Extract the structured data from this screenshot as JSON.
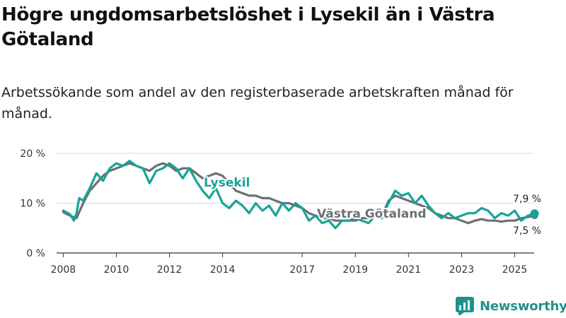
{
  "title": "Högre ungdomsarbetslöshet i Lysekil än i Västra Götaland",
  "subtitle": "Arbetssökande som andel av den registerbaserade arbetskraften månad för månad.",
  "logo": {
    "text": "Newsworthy"
  },
  "colors": {
    "lysekil": "#17a398",
    "vastra": "#6e6e75",
    "grid": "#dcdcdc",
    "axis": "#333333"
  },
  "chart_data": {
    "type": "line",
    "title": "Högre ungdomsarbetslöshet i Lysekil än i Västra Götaland",
    "xlabel": "",
    "ylabel": "",
    "ylim": [
      0,
      20
    ],
    "xlim": [
      2007.75,
      2026.4
    ],
    "yticks": [
      0,
      10,
      20
    ],
    "ytick_labels": [
      "0 %",
      "10 %",
      "20 %"
    ],
    "xticks": [
      2008,
      2010,
      2012,
      2014,
      2017,
      2019,
      2021,
      2023,
      2025
    ],
    "xtick_labels": [
      "2008",
      "2010",
      "2012",
      "2014",
      "2017",
      "2019",
      "2021",
      "2023",
      "2025"
    ],
    "grid": true,
    "series": [
      {
        "name": "Lysekil",
        "label": "Lysekil",
        "end_label": "7,9 %",
        "x": [
          2008.0,
          2008.25,
          2008.4,
          2008.5,
          2008.6,
          2008.75,
          2009.0,
          2009.25,
          2009.5,
          2009.75,
          2010.0,
          2010.25,
          2010.5,
          2010.75,
          2011.0,
          2011.25,
          2011.5,
          2011.75,
          2012.0,
          2012.25,
          2012.5,
          2012.75,
          2013.0,
          2013.25,
          2013.5,
          2013.75,
          2014.0,
          2014.25,
          2014.5,
          2014.75,
          2015.0,
          2015.25,
          2015.5,
          2015.75,
          2016.0,
          2016.25,
          2016.5,
          2016.75,
          2017.0,
          2017.25,
          2017.5,
          2017.75,
          2018.0,
          2018.25,
          2018.5,
          2018.75,
          2019.0,
          2019.25,
          2019.5,
          2019.75,
          2020.0,
          2020.25,
          2020.5,
          2020.75,
          2021.0,
          2021.25,
          2021.5,
          2021.75,
          2022.0,
          2022.25,
          2022.5,
          2022.75,
          2023.0,
          2023.25,
          2023.5,
          2023.75,
          2024.0,
          2024.25,
          2024.5,
          2024.75,
          2025.0,
          2025.25,
          2025.5,
          2025.75
        ],
        "values": [
          8.5,
          7.8,
          6.5,
          8.0,
          11.0,
          10.5,
          13.0,
          16.0,
          14.5,
          17.0,
          18.0,
          17.5,
          18.5,
          17.5,
          17.0,
          14.0,
          16.5,
          17.0,
          18.0,
          17.0,
          15.0,
          17.0,
          14.5,
          12.5,
          11.0,
          13.0,
          10.0,
          9.0,
          10.5,
          9.5,
          8.0,
          10.0,
          8.5,
          9.5,
          7.5,
          10.0,
          8.5,
          10.0,
          9.0,
          6.5,
          7.5,
          6.0,
          6.5,
          5.0,
          6.5,
          6.5,
          7.0,
          6.5,
          6.0,
          7.5,
          7.0,
          10.0,
          12.5,
          11.5,
          12.0,
          10.0,
          11.5,
          9.5,
          8.0,
          7.0,
          8.0,
          7.0,
          7.5,
          8.0,
          8.0,
          9.0,
          8.5,
          7.0,
          8.0,
          7.5,
          8.5,
          6.5,
          7.5,
          7.9
        ]
      },
      {
        "name": "Västra Götaland",
        "label": "Västra Götaland",
        "end_label": "7,5 %",
        "x": [
          2008.0,
          2008.25,
          2008.5,
          2008.75,
          2009.0,
          2009.25,
          2009.5,
          2009.75,
          2010.0,
          2010.25,
          2010.5,
          2010.75,
          2011.0,
          2011.25,
          2011.5,
          2011.75,
          2012.0,
          2012.25,
          2012.5,
          2012.75,
          2013.0,
          2013.25,
          2013.5,
          2013.75,
          2014.0,
          2014.25,
          2014.5,
          2014.75,
          2015.0,
          2015.25,
          2015.5,
          2015.75,
          2016.0,
          2016.25,
          2016.5,
          2016.75,
          2017.0,
          2017.25,
          2017.5,
          2017.75,
          2018.0,
          2018.25,
          2018.5,
          2018.75,
          2019.0,
          2019.25,
          2019.5,
          2019.75,
          2020.0,
          2020.25,
          2020.5,
          2020.75,
          2021.0,
          2021.25,
          2021.5,
          2021.75,
          2022.0,
          2022.25,
          2022.5,
          2022.75,
          2023.0,
          2023.25,
          2023.5,
          2023.75,
          2024.0,
          2024.25,
          2024.5,
          2024.75,
          2025.0,
          2025.25,
          2025.5,
          2025.75
        ],
        "values": [
          8.2,
          7.5,
          7.0,
          10.0,
          12.5,
          14.0,
          15.5,
          16.5,
          17.0,
          17.5,
          18.0,
          17.5,
          17.0,
          16.5,
          17.5,
          18.0,
          17.5,
          16.5,
          17.0,
          17.0,
          16.0,
          15.0,
          15.5,
          16.0,
          15.5,
          14.0,
          12.5,
          12.0,
          11.5,
          11.5,
          11.0,
          11.0,
          10.5,
          10.0,
          10.0,
          9.5,
          9.0,
          8.0,
          7.5,
          7.0,
          7.0,
          6.5,
          6.5,
          6.5,
          6.5,
          7.0,
          7.0,
          7.5,
          7.5,
          10.5,
          11.5,
          11.0,
          10.5,
          10.0,
          9.5,
          9.0,
          8.0,
          7.5,
          7.0,
          7.0,
          6.5,
          6.0,
          6.5,
          6.8,
          6.5,
          6.5,
          6.3,
          6.5,
          6.5,
          7.0,
          7.2,
          7.5
        ]
      }
    ]
  }
}
